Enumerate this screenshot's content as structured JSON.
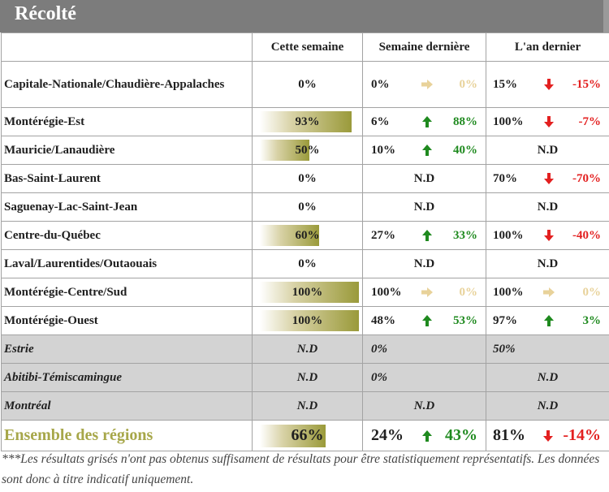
{
  "header": {
    "title": "Récolté"
  },
  "columns": {
    "region": "",
    "this_week": "Cette semaine",
    "last_week": "Semaine dernière",
    "last_year": "L'an dernier"
  },
  "colors": {
    "up": "#1f8a1f",
    "down": "#e32020",
    "flat": "#e8d29a",
    "total_label": "#a7a74a",
    "grey_row": "#d3d3d3",
    "header_bg": "#7c7c7c"
  },
  "rows": [
    {
      "region": "Capitale-Nationale/Chaudière-Appalaches",
      "this_week": "0%",
      "progress": 0,
      "last_week": {
        "value": "0%",
        "trend": "flat",
        "change": "0%"
      },
      "last_year": {
        "value": "15%",
        "trend": "down",
        "change": "-15%"
      }
    },
    {
      "region": "Montérégie-Est",
      "this_week": "93%",
      "progress": 93,
      "last_week": {
        "value": "6%",
        "trend": "up",
        "change": "88%"
      },
      "last_year": {
        "value": "100%",
        "trend": "down",
        "change": "-7%"
      }
    },
    {
      "region": "Mauricie/Lanaudière",
      "this_week": "50%",
      "progress": 50,
      "last_week": {
        "value": "10%",
        "trend": "up",
        "change": "40%"
      },
      "last_year": {
        "nd": "N.D"
      }
    },
    {
      "region": "Bas-Saint-Laurent",
      "this_week": "0%",
      "progress": 0,
      "last_week": {
        "nd": "N.D"
      },
      "last_year": {
        "value": "70%",
        "trend": "down",
        "change": "-70%"
      }
    },
    {
      "region": "Saguenay-Lac-Saint-Jean",
      "this_week": "0%",
      "progress": 0,
      "last_week": {
        "nd": "N.D"
      },
      "last_year": {
        "nd": "N.D"
      }
    },
    {
      "region": "Centre-du-Québec",
      "this_week": "60%",
      "progress": 60,
      "last_week": {
        "value": "27%",
        "trend": "up",
        "change": "33%"
      },
      "last_year": {
        "value": "100%",
        "trend": "down",
        "change": "-40%"
      }
    },
    {
      "region": "Laval/Laurentides/Outaouais",
      "this_week": "0%",
      "progress": 0,
      "last_week": {
        "nd": "N.D"
      },
      "last_year": {
        "nd": "N.D"
      }
    },
    {
      "region": "Montérégie-Centre/Sud",
      "this_week": "100%",
      "progress": 100,
      "last_week": {
        "value": "100%",
        "trend": "flat",
        "change": "0%"
      },
      "last_year": {
        "value": "100%",
        "trend": "flat",
        "change": "0%"
      }
    },
    {
      "region": "Montérégie-Ouest",
      "this_week": "100%",
      "progress": 100,
      "last_week": {
        "value": "48%",
        "trend": "up",
        "change": "53%"
      },
      "last_year": {
        "value": "97%",
        "trend": "up",
        "change": "3%"
      }
    },
    {
      "region": "Estrie",
      "this_week": "N.D",
      "grey": true,
      "last_week": {
        "value_only": "0%"
      },
      "last_year": {
        "value_only": "50%"
      }
    },
    {
      "region": "Abitibi-Témiscamingue",
      "this_week": "N.D",
      "grey": true,
      "last_week": {
        "value_only": "0%"
      },
      "last_year": {
        "nd": "N.D"
      }
    },
    {
      "region": "Montréal",
      "this_week": "N.D",
      "grey": true,
      "last_week": {
        "nd": "N.D"
      },
      "last_year": {
        "nd": "N.D"
      }
    }
  ],
  "total": {
    "region": "Ensemble des régions",
    "this_week": "66%",
    "progress": 66,
    "last_week": {
      "value": "24%",
      "trend": "up",
      "change": "43%"
    },
    "last_year": {
      "value": "81%",
      "trend": "down",
      "change": "-14%"
    }
  },
  "footnote": "***Les résultats grisés n'ont pas obtenus suffisament de résultats pour être statistiquement représentatifs. Les données sont donc à titre indicatif uniquement."
}
